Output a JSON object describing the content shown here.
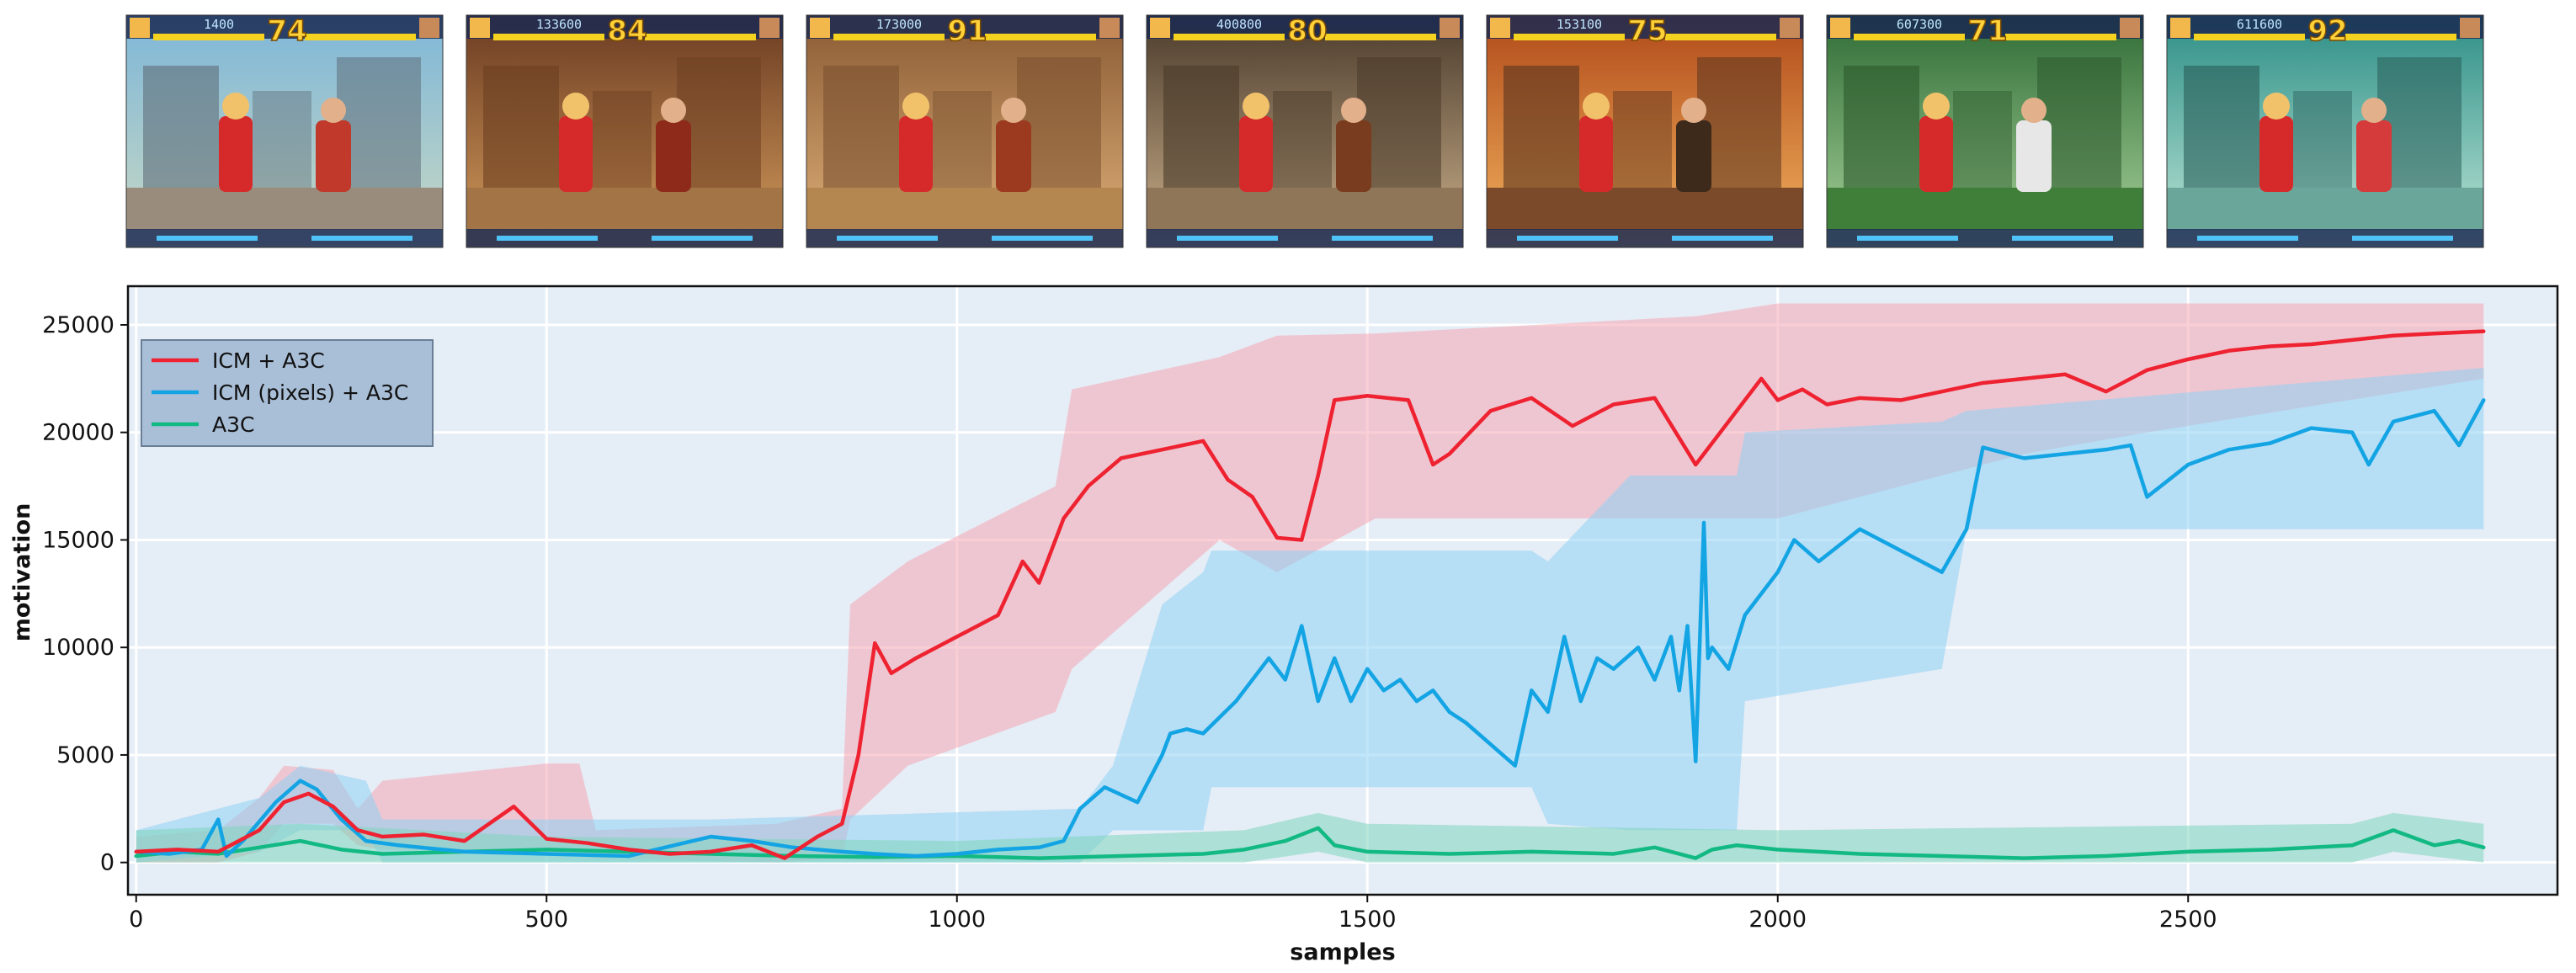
{
  "thumbnails": [
    {
      "timer": "74",
      "score": "1400"
    },
    {
      "timer": "84",
      "score": "133600"
    },
    {
      "timer": "91",
      "score": "173000"
    },
    {
      "timer": "80",
      "score": "400800"
    },
    {
      "timer": "75",
      "score": "153100"
    },
    {
      "timer": "71",
      "score": "607300"
    },
    {
      "timer": "92",
      "score": "611600"
    }
  ],
  "chart_data": {
    "type": "line",
    "xlabel": "samples",
    "ylabel": "motivation",
    "xlim": [
      -10,
      2950
    ],
    "ylim": [
      -1500,
      26800
    ],
    "xticks": [
      0,
      500,
      1000,
      1500,
      2000,
      2500
    ],
    "yticks": [
      0,
      5000,
      10000,
      15000,
      20000,
      25000
    ],
    "grid": true,
    "legend_position": "upper-left",
    "background": "#e5edf6",
    "series": [
      {
        "name": "ICM + A3C",
        "color": "#ee2230",
        "band_color": "#f6a5b2",
        "x": [
          0,
          50,
          100,
          150,
          180,
          210,
          240,
          270,
          300,
          350,
          400,
          460,
          500,
          550,
          600,
          650,
          700,
          750,
          790,
          830,
          860,
          880,
          900,
          920,
          950,
          1000,
          1050,
          1080,
          1100,
          1130,
          1160,
          1200,
          1250,
          1300,
          1330,
          1360,
          1390,
          1420,
          1440,
          1460,
          1500,
          1550,
          1580,
          1600,
          1650,
          1700,
          1750,
          1800,
          1850,
          1900,
          1950,
          1980,
          2000,
          2030,
          2060,
          2100,
          2150,
          2200,
          2250,
          2300,
          2350,
          2400,
          2450,
          2500,
          2550,
          2600,
          2650,
          2700,
          2750,
          2800,
          2860
        ],
        "values": [
          500,
          600,
          500,
          1500,
          2800,
          3200,
          2600,
          1500,
          1200,
          1300,
          1000,
          2600,
          1100,
          900,
          600,
          400,
          500,
          800,
          200,
          1200,
          1800,
          5000,
          10200,
          8800,
          9500,
          10500,
          11500,
          14000,
          13000,
          16000,
          17500,
          18800,
          19200,
          19600,
          17800,
          17000,
          15100,
          15000,
          18000,
          21500,
          21700,
          21500,
          18500,
          19000,
          21000,
          21600,
          20300,
          21300,
          21600,
          18500,
          21000,
          22500,
          21500,
          22000,
          21300,
          21600,
          21500,
          21900,
          22300,
          22500,
          22700,
          21900,
          22900,
          23400,
          23800,
          24000,
          24100,
          24300,
          24500,
          24600,
          24700
        ],
        "band": [
          [
            0,
            0,
            1200
          ],
          [
            100,
            0,
            1500
          ],
          [
            150,
            500,
            3000
          ],
          [
            180,
            1800,
            4500
          ],
          [
            240,
            1800,
            4300
          ],
          [
            270,
            800,
            2500
          ],
          [
            300,
            600,
            3800
          ],
          [
            500,
            500,
            4600
          ],
          [
            540,
            300,
            4600
          ],
          [
            560,
            200,
            1500
          ],
          [
            780,
            0,
            1800
          ],
          [
            860,
            200,
            2500
          ],
          [
            870,
            2000,
            12000
          ],
          [
            940,
            4500,
            14000
          ],
          [
            1120,
            7000,
            17500
          ],
          [
            1140,
            9000,
            22000
          ],
          [
            1320,
            15000,
            23500
          ],
          [
            1390,
            13500,
            24500
          ],
          [
            1510,
            16000,
            24600
          ],
          [
            1900,
            16000,
            25400
          ],
          [
            2000,
            16000,
            26000
          ],
          [
            2300,
            19000,
            26000
          ],
          [
            2450,
            20000,
            26000
          ],
          [
            2860,
            22500,
            26000
          ]
        ]
      },
      {
        "name": "ICM (pixels) + A3C",
        "color": "#13a4e4",
        "band_color": "#8fd1f4",
        "x": [
          0,
          40,
          80,
          100,
          110,
          130,
          170,
          200,
          220,
          250,
          280,
          320,
          400,
          500,
          600,
          700,
          750,
          800,
          860,
          900,
          950,
          1000,
          1050,
          1100,
          1130,
          1150,
          1180,
          1220,
          1250,
          1260,
          1280,
          1300,
          1340,
          1380,
          1400,
          1420,
          1440,
          1460,
          1480,
          1500,
          1520,
          1540,
          1560,
          1580,
          1600,
          1620,
          1650,
          1680,
          1700,
          1720,
          1740,
          1760,
          1780,
          1800,
          1830,
          1850,
          1870,
          1880,
          1890,
          1900,
          1910,
          1915,
          1920,
          1940,
          1960,
          2000,
          2020,
          2050,
          2100,
          2150,
          2200,
          2230,
          2250,
          2300,
          2350,
          2400,
          2430,
          2450,
          2500,
          2550,
          2600,
          2650,
          2700,
          2720,
          2750,
          2800,
          2830,
          2860
        ],
        "values": [
          500,
          400,
          600,
          2000,
          300,
          1000,
          2800,
          3800,
          3400,
          2000,
          1000,
          800,
          500,
          400,
          300,
          1200,
          1000,
          700,
          500,
          400,
          300,
          400,
          600,
          700,
          1000,
          2500,
          3500,
          2800,
          5000,
          6000,
          6200,
          6000,
          7500,
          9500,
          8500,
          11000,
          7500,
          9500,
          7500,
          9000,
          8000,
          8500,
          7500,
          8000,
          7000,
          6500,
          5500,
          4500,
          8000,
          7000,
          10500,
          7500,
          9500,
          9000,
          10000,
          8500,
          10500,
          8000,
          11000,
          4700,
          15800,
          9500,
          10000,
          9000,
          11500,
          13500,
          15000,
          14000,
          15500,
          14500,
          13500,
          15500,
          19300,
          18800,
          19000,
          19200,
          19400,
          17000,
          18500,
          19200,
          19500,
          20200,
          20000,
          18500,
          20500,
          21000,
          19400,
          21500
        ],
        "band": [
          [
            0,
            0,
            1500
          ],
          [
            150,
            500,
            3000
          ],
          [
            200,
            1500,
            4500
          ],
          [
            280,
            1500,
            3800
          ],
          [
            300,
            0,
            2000
          ],
          [
            700,
            0,
            2000
          ],
          [
            1150,
            0,
            2500
          ],
          [
            1190,
            1500,
            4500
          ],
          [
            1250,
            1500,
            12000
          ],
          [
            1300,
            1500,
            13500
          ],
          [
            1310,
            3500,
            14500
          ],
          [
            1700,
            3500,
            14500
          ],
          [
            1720,
            1800,
            14000
          ],
          [
            1820,
            1500,
            18000
          ],
          [
            1950,
            1500,
            18000
          ],
          [
            1960,
            7500,
            20000
          ],
          [
            2200,
            9000,
            20500
          ],
          [
            2230,
            15500,
            21000
          ],
          [
            2860,
            15500,
            23000
          ]
        ]
      },
      {
        "name": "A3C",
        "color": "#12b983",
        "band_color": "#7fd6bc",
        "x": [
          0,
          50,
          100,
          150,
          200,
          250,
          300,
          400,
          500,
          600,
          700,
          800,
          900,
          1000,
          1100,
          1200,
          1300,
          1350,
          1400,
          1440,
          1460,
          1500,
          1600,
          1700,
          1800,
          1850,
          1900,
          1920,
          1950,
          2000,
          2050,
          2100,
          2200,
          2300,
          2400,
          2500,
          2600,
          2700,
          2750,
          2800,
          2830,
          2860
        ],
        "values": [
          300,
          500,
          400,
          700,
          1000,
          600,
          400,
          500,
          600,
          500,
          400,
          300,
          250,
          300,
          200,
          300,
          400,
          600,
          1000,
          1600,
          800,
          500,
          400,
          500,
          400,
          700,
          200,
          600,
          800,
          600,
          500,
          400,
          300,
          200,
          300,
          500,
          600,
          800,
          1500,
          800,
          1000,
          700
        ],
        "band": [
          [
            0,
            0,
            1500
          ],
          [
            200,
            0,
            1800
          ],
          [
            500,
            0,
            1200
          ],
          [
            1000,
            0,
            1000
          ],
          [
            1350,
            0,
            1500
          ],
          [
            1440,
            500,
            2300
          ],
          [
            1500,
            0,
            1800
          ],
          [
            2000,
            0,
            1500
          ],
          [
            2700,
            0,
            1800
          ],
          [
            2750,
            500,
            2300
          ],
          [
            2860,
            0,
            1800
          ]
        ]
      }
    ]
  }
}
